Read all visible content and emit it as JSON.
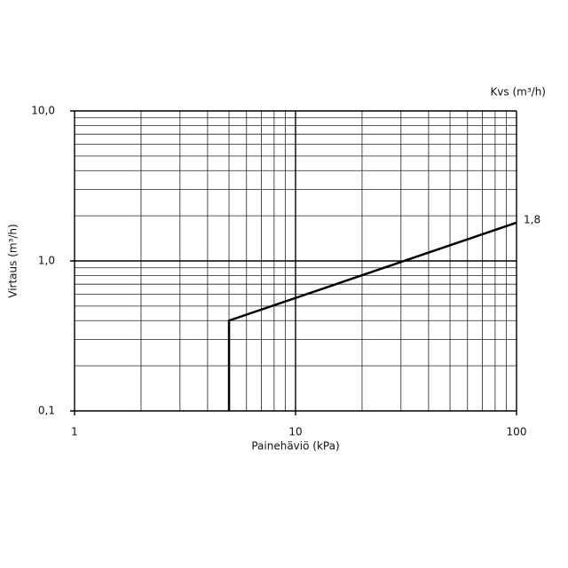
{
  "chart_data": {
    "type": "line",
    "xlabel": "Painehäviö (kPa)",
    "ylabel": "Virtaus (m³/h)",
    "annotation": "Kvs (m³/h)",
    "xscale": "log",
    "yscale": "log",
    "grid": true,
    "xlim": [
      1,
      100
    ],
    "xticks": [
      1,
      10,
      100
    ],
    "x_minor_ticks": [
      2,
      3,
      4,
      5,
      6,
      7,
      8,
      9,
      20,
      30,
      40,
      50,
      60,
      70,
      80,
      90
    ],
    "ylim": [
      0.1,
      10
    ],
    "yticks": [
      {
        "value": 0.1,
        "label": "0,1"
      },
      {
        "value": 1,
        "label": "1,0"
      },
      {
        "value": 10,
        "label": "10,0"
      }
    ],
    "y_minor_ticks": [
      0.2,
      0.3,
      0.4,
      0.5,
      0.6,
      0.7,
      0.8,
      0.9,
      2,
      3,
      4,
      5,
      6,
      7,
      8,
      9
    ],
    "series": [
      {
        "color": "#000000",
        "x": [
          5,
          5,
          100
        ],
        "values": [
          0.1,
          0.4,
          1.8
        ],
        "value_labels": [
          null,
          null,
          "1,8"
        ]
      }
    ]
  }
}
